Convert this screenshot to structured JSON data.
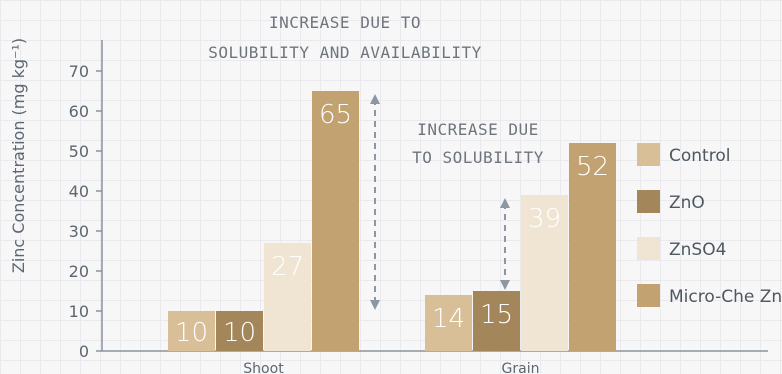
{
  "chart_data": {
    "type": "bar",
    "categories": [
      "Shoot",
      "Grain"
    ],
    "series": [
      {
        "name": "Control",
        "values": [
          10,
          14
        ],
        "color": "#d8bf98"
      },
      {
        "name": "ZnO",
        "values": [
          10,
          15
        ],
        "color": "#a3865a"
      },
      {
        "name": "ZnSO4",
        "values": [
          27,
          39
        ],
        "color": "#f0e4d2"
      },
      {
        "name": "Micro-Che Zn",
        "values": [
          65,
          52
        ],
        "color": "#c2a270"
      }
    ],
    "ylabel": "Zinc Concentration (mg kg⁻¹)",
    "ylim": [
      0,
      75
    ],
    "yticks": [
      0,
      10,
      20,
      30,
      40,
      50,
      60,
      70
    ],
    "legend_position": "right",
    "grid": true,
    "annotations": [
      {
        "lines": [
          "INCREASE DUE TO",
          "SOLUBILITY AND AVAILABILITY"
        ],
        "category": "Shoot",
        "from": 10,
        "to": 65
      },
      {
        "lines": [
          "INCREASE DUE",
          "TO SOLUBILITY"
        ],
        "category": "Grain",
        "from": 15,
        "to": 39
      }
    ]
  }
}
